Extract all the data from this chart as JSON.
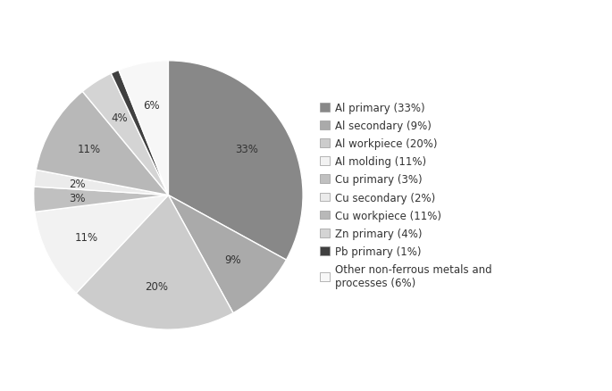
{
  "labels": [
    "Al primary (33%)",
    "Al secondary (9%)",
    "Al workpiece (20%)",
    "Al molding (11%)",
    "Cu primary (3%)",
    "Cu secondary (2%)",
    "Cu workpiece (11%)",
    "Zn primary (4%)",
    "Pb primary (1%)",
    "Other non-ferrous metals and\nprocesses (6%)"
  ],
  "values": [
    33,
    9,
    20,
    11,
    3,
    2,
    11,
    4,
    1,
    6
  ],
  "colors": [
    "#888888",
    "#aaaaaa",
    "#cccccc",
    "#f2f2f2",
    "#c0c0c0",
    "#ebebeb",
    "#b8b8b8",
    "#d4d4d4",
    "#404040",
    "#f7f7f7"
  ],
  "pct_labels": [
    "33%",
    "9%",
    "20%",
    "11%",
    "3%",
    "2%",
    "11%",
    "4%",
    "1%",
    "6%"
  ],
  "startangle": 90,
  "background_color": "#ffffff"
}
